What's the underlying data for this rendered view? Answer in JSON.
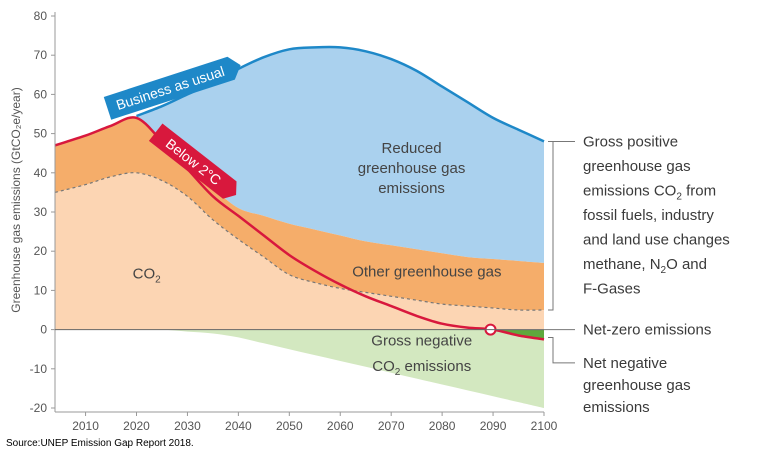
{
  "chart_data": {
    "type": "area",
    "ylabel": "Greenhouse gas emissions (GtCO₂e/year)",
    "ylim": [
      -20,
      80
    ],
    "xlim": [
      2004,
      2100
    ],
    "x_ticks": [
      2010,
      2020,
      2030,
      2040,
      2050,
      2060,
      2070,
      2080,
      2090,
      2100
    ],
    "y_ticks": [
      -20,
      -10,
      0,
      10,
      20,
      30,
      40,
      50,
      60,
      70,
      80
    ],
    "grid": false,
    "x": [
      2004,
      2010,
      2015,
      2020,
      2025,
      2030,
      2035,
      2040,
      2045,
      2050,
      2055,
      2060,
      2065,
      2070,
      2075,
      2080,
      2085,
      2090,
      2095,
      2100
    ],
    "series": [
      {
        "name": "Business as usual",
        "values": [
          47,
          49.5,
          52,
          54.5,
          57,
          60,
          63,
          66.5,
          69.5,
          71.5,
          72,
          72,
          71,
          69,
          66,
          62,
          58,
          54,
          51,
          48
        ]
      },
      {
        "name": "Below 2°C",
        "values": [
          47,
          49.5,
          52,
          54,
          48,
          41,
          34,
          29,
          24,
          19,
          15,
          11.5,
          8.5,
          6,
          3.5,
          1.5,
          0.5,
          0,
          -1.5,
          -2.5
        ]
      },
      {
        "name": "Gross positive greenhouse gas emissions",
        "values": [
          47,
          49.5,
          52,
          54,
          48,
          41,
          36,
          31,
          29,
          27,
          25.5,
          24,
          22.5,
          21.5,
          20.5,
          19.5,
          18.5,
          18,
          17.5,
          17
        ]
      },
      {
        "name": "CO₂",
        "values": [
          35,
          37,
          39,
          40,
          38,
          34,
          28,
          23,
          18.5,
          14,
          12,
          10.5,
          9.5,
          8.5,
          7.5,
          6.5,
          6,
          5.5,
          5,
          5
        ]
      },
      {
        "name": "Gross negative CO₂ emissions",
        "values": [
          0,
          0,
          0,
          0,
          0,
          -0.5,
          -1,
          -2,
          -3.5,
          -5,
          -6.5,
          -8,
          -9.5,
          -11,
          -12.5,
          -14,
          -15.5,
          -17,
          -18.5,
          -20
        ]
      }
    ],
    "region_labels": {
      "reduced": [
        "Reduced",
        "greenhouse gas",
        "emissions"
      ],
      "other_ghg": "Other greenhouse gas",
      "co2_main": "CO",
      "co2_sub": "2",
      "negative_line1": "Gross negative",
      "negative_line2_prefix": "CO",
      "negative_line2_sub": "2",
      "negative_line2_suffix": " emissions"
    },
    "banners": {
      "business": "Business as usual",
      "below2": "Below 2°C"
    },
    "annotations": {
      "gross_positive": [
        "Gross positive",
        "greenhouse gas",
        {
          "pre": "emissions CO",
          "sub": "2",
          "post": " from"
        },
        "fossil fuels, industry",
        "and land use changes",
        {
          "pre": "methane, N",
          "sub": "2",
          "post": "O and"
        },
        "F-Gases"
      ],
      "net_zero": "Net-zero emissions",
      "net_negative": [
        "Net negative",
        "greenhouse gas",
        "emissions"
      ]
    },
    "net_zero_year": 2089.5,
    "colors": {
      "business": "#aad1ee",
      "business_line": "#1e88c8",
      "other_ghg": "#f5ad6a",
      "co2": "#fcd5b3",
      "negative": "#d3e8c0",
      "net_negative": "#5fa83c",
      "below2": "#d8183d",
      "axis": "#999999"
    }
  },
  "source": "Source:UNEP Emission Gap Report 2018."
}
